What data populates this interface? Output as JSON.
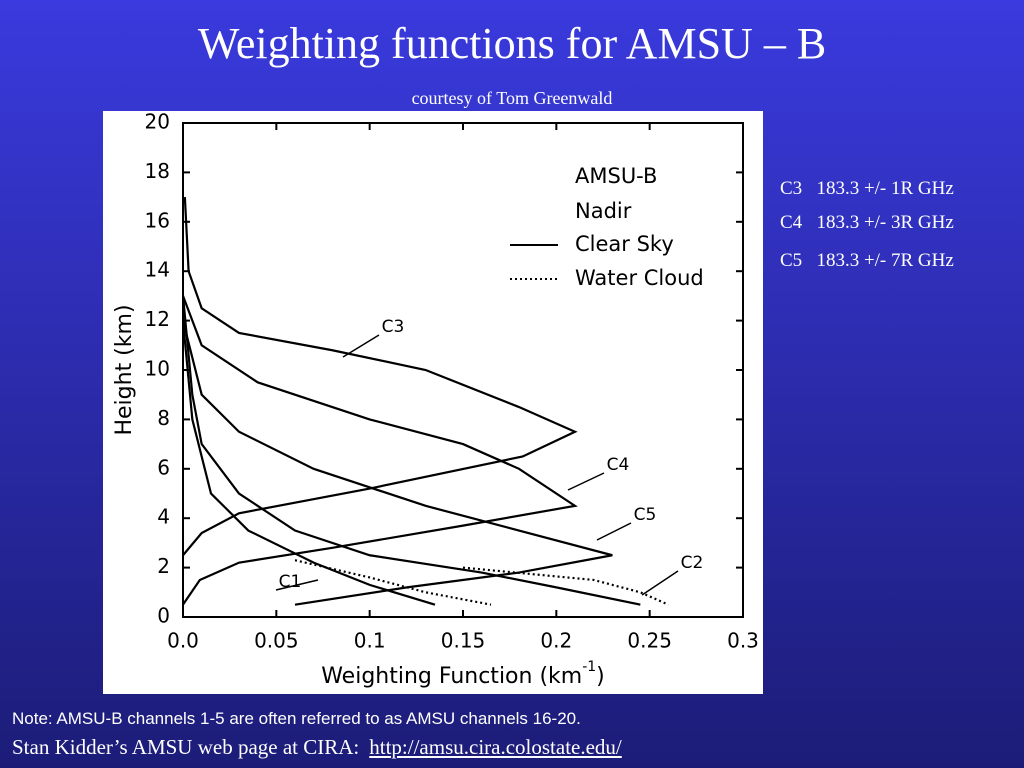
{
  "slide": {
    "title": "Weighting functions for AMSU – B",
    "subtitle": "courtesy of Tom Greenwald",
    "channels": [
      [
        "C3",
        "183.3 +/- 1R GHz"
      ],
      [
        "C4",
        "183.3 +/- 3R GHz"
      ],
      [
        "C5",
        "183.3 +/- 7R GHz"
      ]
    ],
    "note": "Note: AMSU-B channels 1-5 are often referred to as AMSU channels 16-20.",
    "source": "Stan Kidder’s AMSU web page at CIRA:",
    "link": "http://amsu.cira.colostate.edu/"
  },
  "chart_data": {
    "type": "line",
    "xlabel": {
      "text": "Weighting Function (km",
      "sup": "-1",
      "close": ")"
    },
    "ylabel": "Height (km)",
    "legend_title": [
      "AMSU-B",
      "Nadir"
    ],
    "xlim": [
      0,
      0.3
    ],
    "ylim": [
      0,
      20
    ],
    "xticks": [
      {
        "value": 0,
        "label": "0.0"
      },
      0.05,
      0.1,
      0.15,
      0.2,
      0.25,
      0.3
    ],
    "yticks": [
      0,
      2,
      4,
      6,
      8,
      10,
      12,
      14,
      16,
      18,
      20
    ],
    "color": "#000000",
    "groups": [
      {
        "name": "Clear Sky",
        "dash": "solid",
        "curves": [
          {
            "label": "C3",
            "x": [
              0.001,
              0.003,
              0.01,
              0.03,
              0.08,
              0.13,
              0.18,
              0.21,
              0.182,
              0.1,
              0.03,
              0.01,
              0.0
            ],
            "y": [
              17,
              14,
              12.5,
              11.5,
              10.8,
              10,
              8.5,
              7.5,
              6.5,
              5.2,
              4.2,
              3.4,
              2.5
            ]
          },
          {
            "label": "C4",
            "x": [
              0.0,
              0.01,
              0.04,
              0.1,
              0.15,
              0.18,
              0.21,
              0.15,
              0.08,
              0.03,
              0.009,
              0.0
            ],
            "y": [
              13,
              11,
              9.5,
              8,
              7,
              6,
              4.5,
              3.7,
              2.8,
              2.2,
              1.5,
              0.5
            ]
          },
          {
            "label": "C5",
            "x": [
              0.0,
              0.01,
              0.03,
              0.07,
              0.13,
              0.18,
              0.23,
              0.18,
              0.12,
              0.06
            ],
            "y": [
              12,
              9,
              7.5,
              6,
              4.5,
              3.5,
              2.5,
              1.8,
              1.2,
              0.5
            ]
          },
          {
            "label": "C2",
            "x": [
              0.0,
              0.005,
              0.01,
              0.03,
              0.06,
              0.1,
              0.16,
              0.2,
              0.245
            ],
            "y": [
              13,
              9,
              7,
              5,
              3.5,
              2.5,
              1.8,
              1.2,
              0.5
            ]
          },
          {
            "label": "C1",
            "x": [
              0.0,
              0.005,
              0.015,
              0.035,
              0.07,
              0.1,
              0.135
            ],
            "y": [
              12,
              8,
              5,
              3.5,
              2.2,
              1.3,
              0.5
            ]
          }
        ]
      },
      {
        "name": "Water Cloud",
        "dash": "dotted",
        "curves": [
          {
            "x": [
              0.06,
              0.1,
              0.13,
              0.165
            ],
            "y": [
              2.3,
              1.6,
              1.0,
              0.5
            ]
          },
          {
            "x": [
              0.15,
              0.22,
              0.245,
              0.26
            ],
            "y": [
              2.0,
              1.5,
              1.0,
              0.5
            ]
          }
        ]
      }
    ]
  }
}
